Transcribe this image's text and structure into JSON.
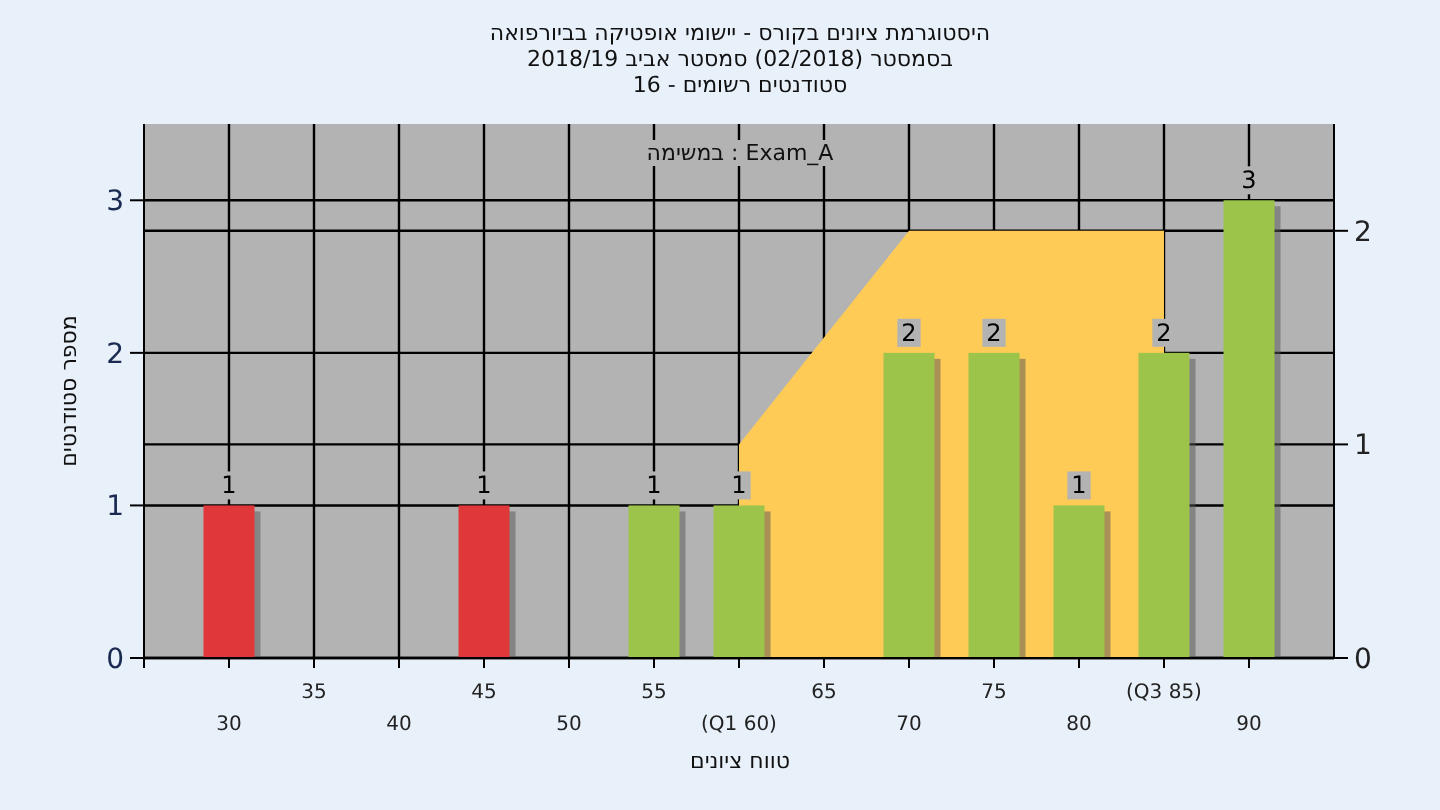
{
  "chart_data": {
    "type": "bar",
    "title": "היסטוגרמת ציונים בקורס - יישומי אופטיקה בביורפואה",
    "subtitle": "בסמסטר  (02/2018)  סמסטר אביב 2018/19\n16 - סטודנטים רשומים",
    "xlabel": "טווח ציונים",
    "ylabel": "מספר סטודנטים",
    "annotations": [
      "במשימה : Exam_A"
    ],
    "categories": [
      "30",
      "35",
      "40",
      "45",
      "50",
      "55",
      "(Q1 60)",
      "65",
      "70",
      "75",
      "80",
      "(Q3 85)",
      "90"
    ],
    "series": [
      {
        "type": "area",
        "axis": "y2",
        "color": "#fecb57",
        "values": [
          null,
          null,
          null,
          null,
          null,
          null,
          1,
          1.5,
          2,
          2,
          2,
          2,
          null
        ]
      },
      {
        "colors": [
          "#e0383a",
          null,
          null,
          "#e0383a",
          null,
          "#9cc44a",
          "#9cc44a",
          null,
          "#9cc44a",
          "#9cc44a",
          "#9cc44a",
          "#9cc44a",
          "#9cc44a"
        ],
        "values": [
          1,
          null,
          null,
          1,
          null,
          1,
          1,
          null,
          2,
          2,
          1,
          2,
          3
        ],
        "value_labels": [
          "1",
          null,
          null,
          "1",
          null,
          "1",
          "1",
          null,
          "2",
          "2",
          "1",
          "2",
          "3"
        ]
      }
    ],
    "ylim": [
      0,
      3.5
    ],
    "yticks": [
      0,
      1,
      2,
      3
    ],
    "y2lim": [
      0,
      2.5
    ],
    "y2ticks": [
      0,
      1,
      2
    ],
    "grid": true
  }
}
